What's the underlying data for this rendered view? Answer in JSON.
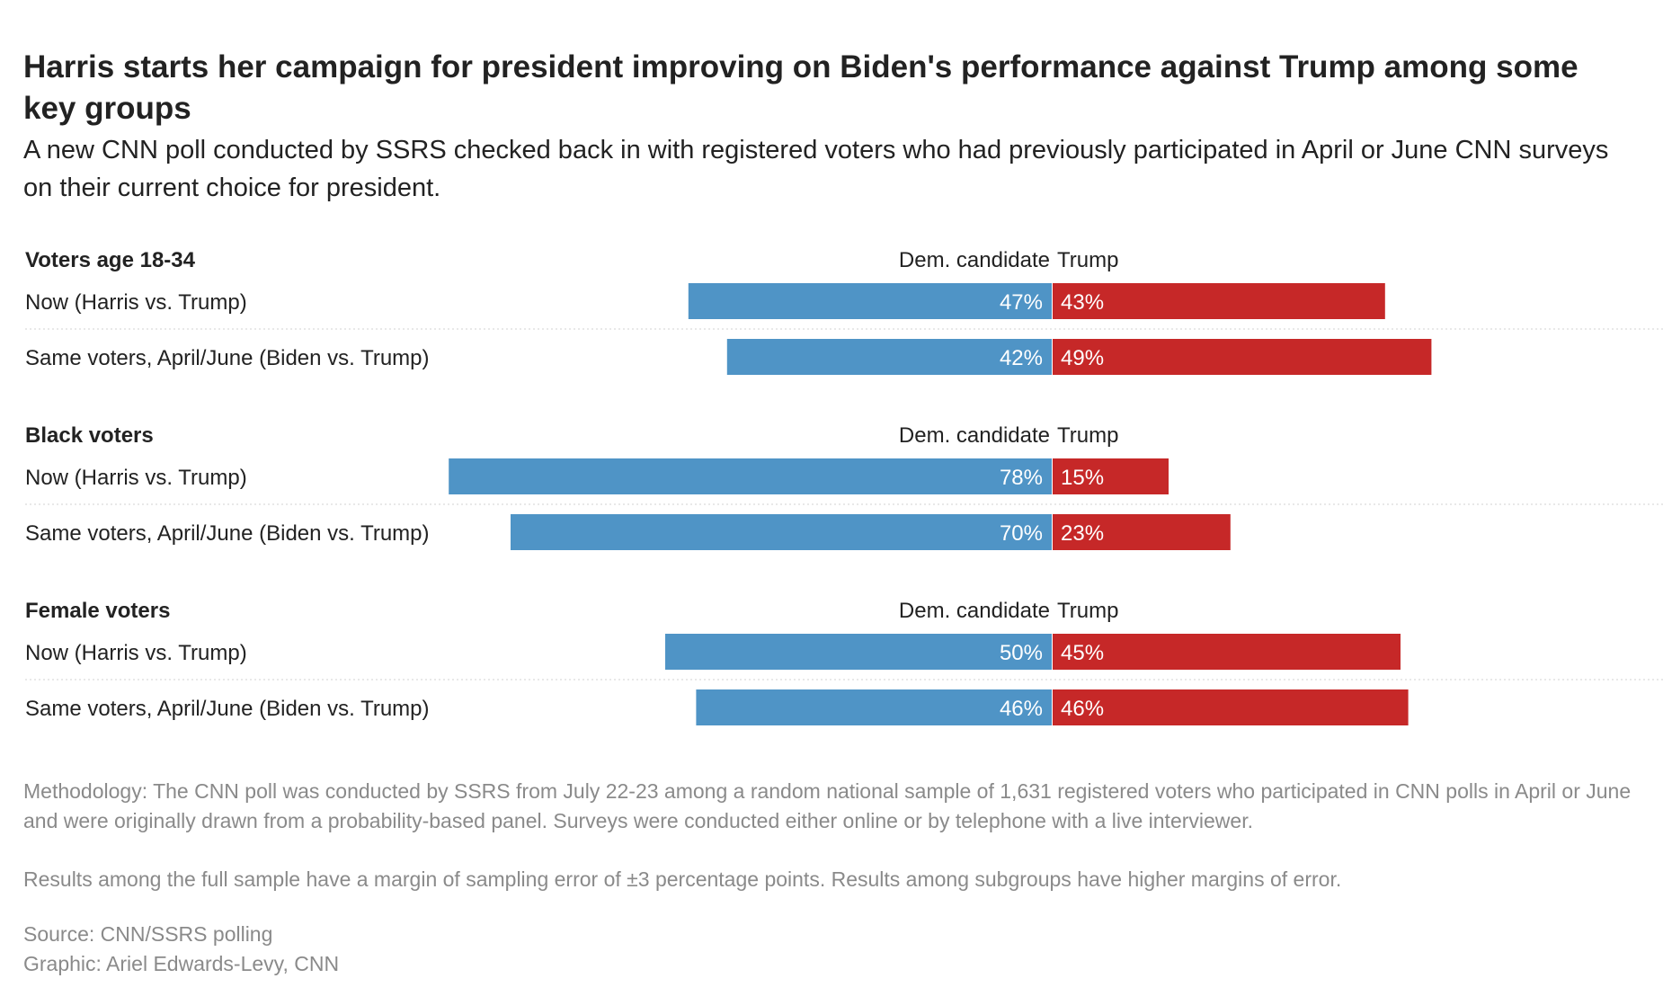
{
  "title": "Harris starts her campaign for president improving on Biden's performance against Trump among some key groups",
  "subtitle": "A new CNN poll conducted by SSRS checked back in with registered voters who had previously participated in April or June CNN surveys on their current choice for president.",
  "colors": {
    "dem": "#4f94c6",
    "rep": "#c62828",
    "divider": "#d0d0d0"
  },
  "chart_data": {
    "type": "bar",
    "orientation": "horizontal-diverging",
    "unit": "%",
    "column_headers": {
      "dem": "Dem. candidate",
      "rep": "Trump"
    },
    "groups": [
      {
        "name": "Voters age 18-34",
        "rows": [
          {
            "label": "Now (Harris vs. Trump)",
            "dem": 47,
            "rep": 43
          },
          {
            "label": "Same voters, April/June (Biden vs. Trump)",
            "dem": 42,
            "rep": 49
          }
        ]
      },
      {
        "name": "Black voters",
        "rows": [
          {
            "label": "Now (Harris vs. Trump)",
            "dem": 78,
            "rep": 15
          },
          {
            "label": "Same voters, April/June (Biden vs. Trump)",
            "dem": 70,
            "rep": 23
          }
        ]
      },
      {
        "name": "Female voters",
        "rows": [
          {
            "label": "Now (Harris vs. Trump)",
            "dem": 50,
            "rep": 45
          },
          {
            "label": "Same voters, April/June (Biden vs. Trump)",
            "dem": 46,
            "rep": 46
          }
        ]
      }
    ]
  },
  "footer": {
    "methodology": "Methodology: The CNN poll was conducted by SSRS from July 22-23 among a random national sample of 1,631 registered voters who participated in CNN polls in April or June and were originally drawn from a probability-based panel. Surveys were conducted either online or by telephone with a live interviewer.",
    "margin": "Results among the full sample have a margin of sampling error of ±3 percentage points. Results among subgroups have higher margins of error.",
    "source": "Source: CNN/SSRS polling",
    "credit": "Graphic: Ariel Edwards-Levy, CNN"
  }
}
